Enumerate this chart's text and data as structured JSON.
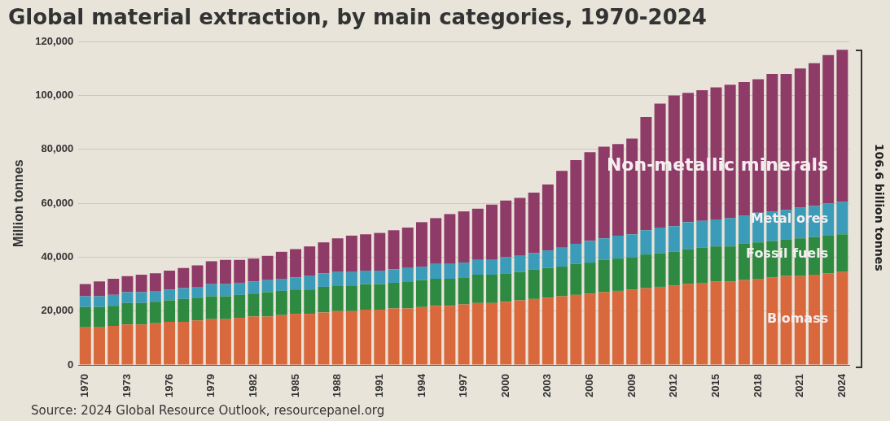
{
  "chart_data": {
    "type": "bar",
    "stacked": true,
    "title": "Global material extraction, by main categories, 1970-2024",
    "ylabel": "Million tonnes",
    "categories": [
      "1970",
      null,
      null,
      "1973",
      null,
      null,
      "1976",
      null,
      null,
      "1979",
      null,
      null,
      "1982",
      null,
      null,
      "1985",
      null,
      null,
      "1988",
      null,
      null,
      "1991",
      null,
      null,
      "1994",
      null,
      null,
      "1997",
      null,
      null,
      "2000",
      null,
      null,
      "2003",
      null,
      null,
      "2006",
      null,
      null,
      "2009",
      null,
      null,
      "2012",
      null,
      null,
      "2015",
      null,
      null,
      "2018",
      null,
      null,
      "2021",
      null,
      null,
      "2024"
    ],
    "series": [
      {
        "name": "Biomass",
        "color": "#d9693c",
        "values": [
          14000,
          14000,
          14500,
          15000,
          15000,
          15500,
          16000,
          16000,
          16500,
          17000,
          17000,
          17500,
          18000,
          18000,
          18500,
          19000,
          19000,
          19500,
          20000,
          20000,
          20500,
          20500,
          21000,
          21000,
          21500,
          22000,
          22000,
          22500,
          23000,
          23000,
          23500,
          24000,
          24500,
          25000,
          25500,
          26000,
          26500,
          27000,
          27500,
          28000,
          28500,
          29000,
          29500,
          30000,
          30500,
          31000,
          31000,
          31500,
          32000,
          32500,
          33000,
          33000,
          33500,
          34000,
          34500
        ]
      },
      {
        "name": "Fossil fuels",
        "color": "#2e8a40",
        "values": [
          7500,
          7500,
          7500,
          8000,
          8000,
          8000,
          8000,
          8500,
          8500,
          8500,
          8500,
          8500,
          8500,
          9000,
          9000,
          9000,
          9000,
          9500,
          9500,
          9500,
          9500,
          9500,
          9500,
          10000,
          10000,
          10000,
          10000,
          10000,
          10500,
          10500,
          10500,
          10500,
          11000,
          11000,
          11000,
          11500,
          11500,
          12000,
          12000,
          12000,
          12500,
          12500,
          12500,
          13000,
          13000,
          13000,
          13000,
          13500,
          13500,
          13500,
          13500,
          14000,
          14000,
          14000,
          14000
        ]
      },
      {
        "name": "Metal ores",
        "color": "#3a9cb8",
        "values": [
          4000,
          4000,
          4000,
          4000,
          4000,
          4000,
          4000,
          4000,
          4000,
          4500,
          4500,
          4500,
          4500,
          4500,
          4500,
          4500,
          5000,
          5000,
          5000,
          5000,
          5000,
          5000,
          5000,
          5000,
          5000,
          5500,
          5500,
          5500,
          5500,
          5500,
          6000,
          6000,
          6000,
          6500,
          7000,
          7500,
          8000,
          8000,
          8500,
          8500,
          9000,
          9500,
          9500,
          10000,
          10000,
          10000,
          10500,
          10500,
          11000,
          11000,
          11000,
          11500,
          11500,
          12000,
          12000
        ]
      },
      {
        "name": "Non-metallic minerals",
        "color": "#8f3b68",
        "values": [
          4500,
          5500,
          6000,
          6000,
          6500,
          6500,
          7000,
          7500,
          8000,
          8500,
          9000,
          8500,
          8500,
          9000,
          10000,
          10500,
          11000,
          11500,
          12500,
          13500,
          13500,
          14000,
          14500,
          15000,
          16500,
          17000,
          18500,
          19000,
          19000,
          20500,
          21000,
          21500,
          22500,
          24500,
          28500,
          31000,
          33000,
          34000,
          34000,
          35500,
          42000,
          46000,
          48500,
          48000,
          48500,
          49000,
          49500,
          49500,
          49500,
          51000,
          50500,
          51500,
          53000,
          55000,
          56500
        ]
      }
    ],
    "ylim": [
      0,
      120000
    ],
    "yticks": [
      0,
      {
        "value": 20000,
        "label": "20,000"
      },
      {
        "value": 40000,
        "label": "40,000"
      },
      {
        "value": 60000,
        "label": "60,000"
      },
      {
        "value": 80000,
        "label": "80,000"
      },
      {
        "value": 100000,
        "label": "100,000"
      },
      {
        "value": 120000,
        "label": "120,000"
      }
    ],
    "grid": "y",
    "annotations": [
      "106.6 billion tonnes",
      "Source: 2024 Global Resource Outlook, resourcepanel.org"
    ]
  }
}
